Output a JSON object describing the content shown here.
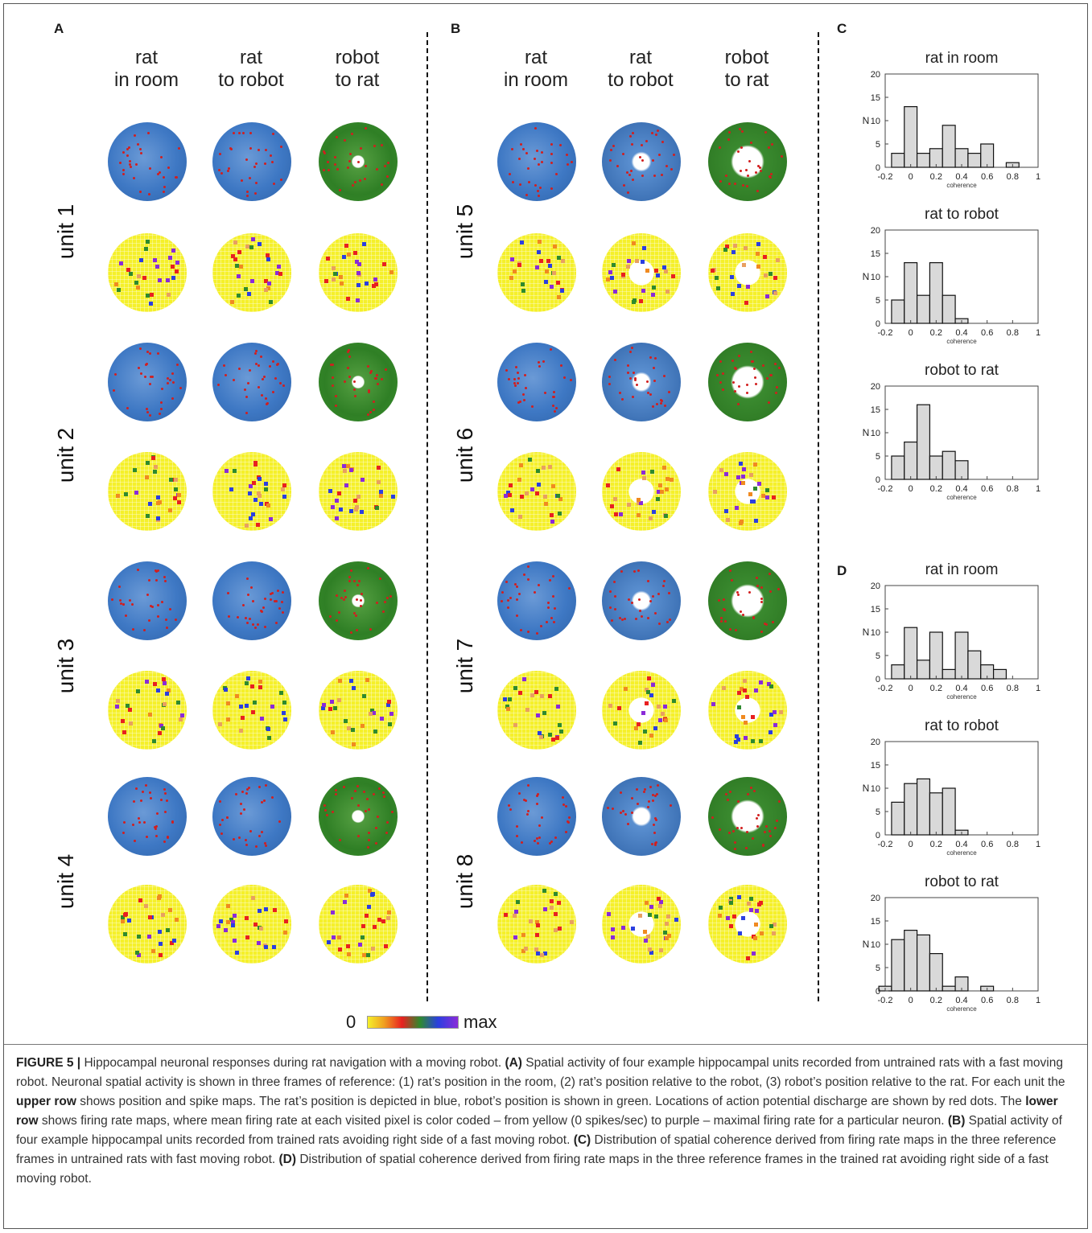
{
  "panels": {
    "A": "A",
    "B": "B",
    "C": "C",
    "D": "D"
  },
  "column_headers": [
    {
      "line1": "rat",
      "line2": "in room"
    },
    {
      "line1": "rat",
      "line2": "to robot"
    },
    {
      "line1": "robot",
      "line2": "to rat"
    }
  ],
  "units_A": [
    "unit 1",
    "unit 2",
    "unit 3",
    "unit 4"
  ],
  "units_B": [
    "unit 5",
    "unit 6",
    "unit 7",
    "unit 8"
  ],
  "colorbar": {
    "min_label": "0",
    "max_label": "max"
  },
  "colors": {
    "rat": "#3e78c4",
    "robot": "#2f7f25",
    "spike": "#d21e1e",
    "rate_low": "#f5f02a",
    "rate_high": "#8a2bd8"
  },
  "chart_data": [
    {
      "type": "bar",
      "panel": "C",
      "title": "rat in room",
      "xlabel": "coherence",
      "ylabel": "N",
      "x": [
        -0.1,
        0,
        0.1,
        0.2,
        0.3,
        0.4,
        0.5,
        0.6,
        0.7,
        0.8
      ],
      "values": [
        3,
        13,
        3,
        4,
        9,
        4,
        3,
        5,
        0,
        1
      ],
      "xticks": [
        "-0.2",
        "0",
        "0.2",
        "0.4",
        "0.6",
        "0.8",
        "1"
      ],
      "yticks": [
        "0",
        "5",
        "10",
        "15",
        "20"
      ],
      "xlim": [
        -0.2,
        1
      ],
      "ylim": [
        0,
        20
      ]
    },
    {
      "type": "bar",
      "panel": "C",
      "title": "rat to robot",
      "xlabel": "coherence",
      "ylabel": "N",
      "x": [
        -0.1,
        0,
        0.1,
        0.2,
        0.3,
        0.4
      ],
      "values": [
        5,
        13,
        6,
        13,
        6,
        1
      ],
      "xticks": [
        "-0.2",
        "0",
        "0.2",
        "0.4",
        "0.6",
        "0.8",
        "1"
      ],
      "yticks": [
        "0",
        "5",
        "10",
        "15",
        "20"
      ],
      "xlim": [
        -0.2,
        1
      ],
      "ylim": [
        0,
        20
      ]
    },
    {
      "type": "bar",
      "panel": "C",
      "title": "robot to rat",
      "xlabel": "coherence",
      "ylabel": "N",
      "x": [
        -0.1,
        0,
        0.1,
        0.2,
        0.3,
        0.4
      ],
      "values": [
        5,
        8,
        16,
        5,
        6,
        4
      ],
      "xticks": [
        "-0.2",
        "0",
        "0.2",
        "0.4",
        "0.6",
        "0.8",
        "1"
      ],
      "yticks": [
        "0",
        "5",
        "10",
        "15",
        "20"
      ],
      "xlim": [
        -0.2,
        1
      ],
      "ylim": [
        0,
        20
      ]
    },
    {
      "type": "bar",
      "panel": "D",
      "title": "rat in room",
      "xlabel": "coherence",
      "ylabel": "N",
      "x": [
        -0.1,
        0,
        0.1,
        0.2,
        0.3,
        0.4,
        0.5,
        0.6,
        0.7
      ],
      "values": [
        3,
        11,
        4,
        10,
        2,
        10,
        6,
        3,
        2
      ],
      "xticks": [
        "-0.2",
        "0",
        "0.2",
        "0.4",
        "0.6",
        "0.8",
        "1"
      ],
      "yticks": [
        "0",
        "5",
        "10",
        "15",
        "20"
      ],
      "xlim": [
        -0.2,
        1
      ],
      "ylim": [
        0,
        20
      ]
    },
    {
      "type": "bar",
      "panel": "D",
      "title": "rat to robot",
      "xlabel": "coherence",
      "ylabel": "N",
      "x": [
        -0.1,
        0,
        0.1,
        0.2,
        0.3,
        0.4
      ],
      "values": [
        7,
        11,
        12,
        9,
        10,
        1
      ],
      "xticks": [
        "-0.2",
        "0",
        "0.2",
        "0.4",
        "0.6",
        "0.8",
        "1"
      ],
      "yticks": [
        "0",
        "5",
        "10",
        "15",
        "20"
      ],
      "xlim": [
        -0.2,
        1
      ],
      "ylim": [
        0,
        20
      ]
    },
    {
      "type": "bar",
      "panel": "D",
      "title": "robot to rat",
      "xlabel": "coherence",
      "ylabel": "N",
      "x": [
        -0.2,
        -0.1,
        0,
        0.1,
        0.2,
        0.3,
        0.4,
        0.5,
        0.6
      ],
      "values": [
        1,
        11,
        13,
        12,
        8,
        1,
        3,
        0,
        1
      ],
      "xticks": [
        "-0.2",
        "0",
        "0.2",
        "0.4",
        "0.6",
        "0.8",
        "1"
      ],
      "yticks": [
        "0",
        "5",
        "10",
        "15",
        "20"
      ],
      "xlim": [
        -0.2,
        1
      ],
      "ylim": [
        0,
        20
      ]
    }
  ],
  "caption": {
    "figure_label": "FIGURE 5 |",
    "intro": " Hippocampal neuronal responses during rat navigation with a moving robot. ",
    "a_label": "(A)",
    "a_text": " Spatial activity of four example hippocampal units recorded from untrained rats with a fast moving robot. Neuronal spatial activity is shown in three frames of reference: (1) rat’s position in the room, (2) rat’s position relative to the robot, (3) robot’s position relative to the rat. For each unit the ",
    "upper_row": "upper row",
    "a_text2": " shows position and spike maps. The rat’s position is depicted in blue, robot’s position is shown in green. Locations of action potential discharge are shown by red dots. The ",
    "lower_row": "lower row",
    "a_text3": " shows firing rate maps, where mean firing rate at each visited pixel is color coded – from yellow (0 spikes/sec) to purple – maximal firing rate for a particular neuron. ",
    "b_label": "(B)",
    "b_text": " Spatial activity of four example hippocampal units recorded from trained rats avoiding right side of a fast moving robot. ",
    "c_label": "(C)",
    "c_text": " Distribution of spatial coherence derived from firing rate maps in the three reference frames in untrained rats with fast moving robot. ",
    "d_label": "(D)",
    "d_text": " Distribution of spatial coherence derived from firing rate maps in the three reference frames in the trained rat avoiding right side of a fast moving robot."
  }
}
